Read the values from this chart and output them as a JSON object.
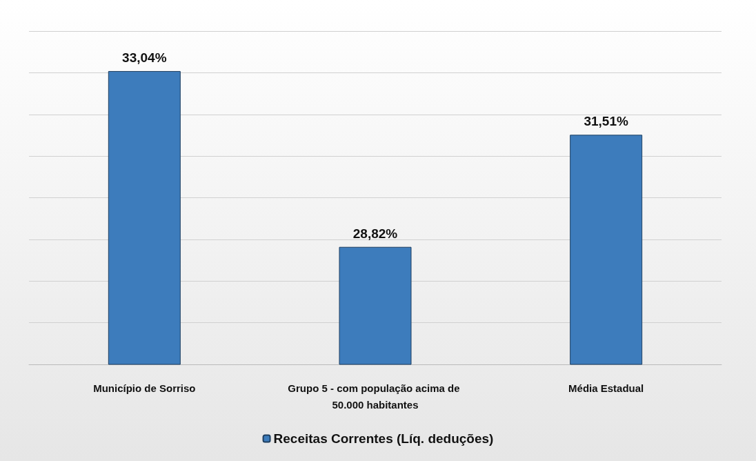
{
  "chart_data": {
    "type": "bar",
    "categories": [
      "Município de Sorriso",
      "Grupo 5 - com população acima de 50.000 habitantes",
      "Média Estadual"
    ],
    "series": [
      {
        "name": "Receitas Correntes (Líq. deduções)",
        "color": "#3d7cbc",
        "values": [
          33.04,
          28.82,
          31.51
        ],
        "value_labels": [
          "33,04%",
          "28,82%",
          "31,51%"
        ]
      }
    ],
    "ylim": [
      26,
      34
    ],
    "yticks": [
      {
        "value": 26,
        "label": null
      },
      {
        "value": 27,
        "label": null
      },
      {
        "value": 28,
        "label": null
      },
      {
        "value": 29,
        "label": null
      },
      {
        "value": 30,
        "label": null
      },
      {
        "value": 31,
        "label": null
      },
      {
        "value": 32,
        "label": null
      },
      {
        "value": 33,
        "label": null
      },
      {
        "value": 34,
        "label": null
      }
    ],
    "tick_labels": "x",
    "grid": "y",
    "legend": "bottom"
  }
}
